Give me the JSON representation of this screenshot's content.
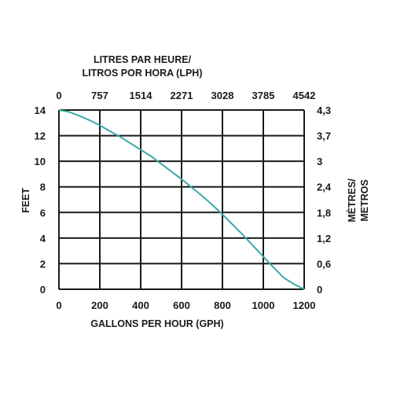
{
  "chart_data": {
    "type": "line",
    "x_axis_bottom": {
      "label": "GALLONS PER HOUR (GPH)",
      "ticks": [
        "0",
        "200",
        "400",
        "600",
        "800",
        "1000",
        "1200"
      ],
      "range": [
        0,
        1200
      ]
    },
    "x_axis_top": {
      "label_line1": "LITRES PAR HEURE/",
      "label_line2": "LITROS POR HORA (LPH)",
      "ticks": [
        "0",
        "757",
        "1514",
        "2271",
        "3028",
        "3785",
        "4542"
      ]
    },
    "y_axis_left": {
      "label": "FEET",
      "ticks": [
        "0",
        "2",
        "4",
        "6",
        "8",
        "10",
        "12",
        "14"
      ],
      "range": [
        0,
        14
      ]
    },
    "y_axis_right": {
      "label_line1": "MÈTRES/",
      "label_line2": "METROS",
      "ticks": [
        "0",
        "0,6",
        "1,2",
        "1,8",
        "2,4",
        "3",
        "3,7",
        "4,3"
      ]
    },
    "grid": true,
    "series": [
      {
        "color": "#3aaaa6",
        "x": [
          0,
          50,
          100,
          150,
          200,
          250,
          300,
          350,
          400,
          450,
          500,
          550,
          600,
          650,
          700,
          750,
          800,
          850,
          900,
          950,
          1000,
          1050,
          1100,
          1150,
          1200
        ],
        "y": [
          14.0,
          13.85,
          13.55,
          13.2,
          12.8,
          12.35,
          11.9,
          11.4,
          10.9,
          10.4,
          9.8,
          9.2,
          8.6,
          7.95,
          7.3,
          6.6,
          5.85,
          5.05,
          4.25,
          3.4,
          2.55,
          1.7,
          0.9,
          0.4,
          0.0
        ]
      }
    ]
  }
}
